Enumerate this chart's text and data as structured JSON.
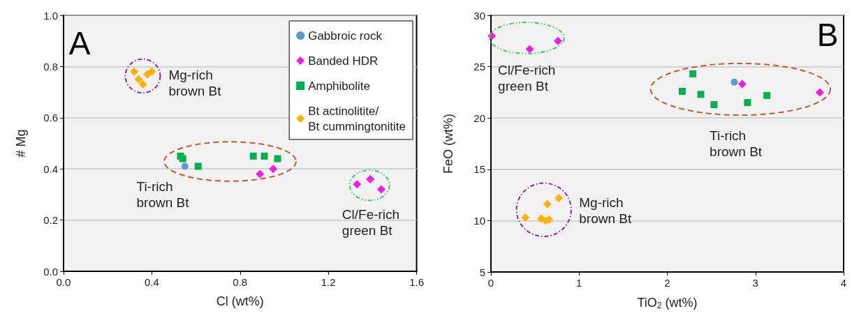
{
  "chart_data": [
    {
      "type": "scatter",
      "xlabel": "Cl (wt%)",
      "ylabel": "# Mg",
      "xlim": [
        0,
        1.6
      ],
      "ylim": [
        0,
        1
      ],
      "xticks": [
        {
          "value": 0,
          "label": "0.0"
        },
        {
          "value": 0.4,
          "label": "0.4"
        },
        {
          "value": 0.8,
          "label": "0.8"
        },
        {
          "value": 1.2,
          "label": "1.2"
        },
        {
          "value": 1.6,
          "label": "1.6"
        }
      ],
      "yticks": [
        {
          "value": 0,
          "label": "0.0"
        },
        {
          "value": 0.2,
          "label": "0.2"
        },
        {
          "value": 0.4,
          "label": "0.4"
        },
        {
          "value": 0.6,
          "label": "0.6"
        },
        {
          "value": 0.8,
          "label": "0.8"
        },
        {
          "value": 1,
          "label": "1.0"
        }
      ],
      "grid": "y",
      "legend": "top right",
      "series": [
        {
          "name": "Gabbroic rock",
          "color": "#5b9bd5",
          "marker": "circle",
          "x": [
            0.55
          ],
          "values": [
            0.41
          ]
        },
        {
          "name": "Banded HDR",
          "color": "#ee1ee6",
          "marker": "diamond",
          "x": [
            0.89,
            0.95,
            1.33,
            1.39,
            1.44
          ],
          "values": [
            0.38,
            0.4,
            0.34,
            0.36,
            0.32
          ]
        },
        {
          "name": "Amphibolite",
          "color": "#00b050",
          "marker": "square",
          "x": [
            0.53,
            0.54,
            0.61,
            0.86,
            0.91,
            0.97
          ],
          "values": [
            0.45,
            0.44,
            0.41,
            0.45,
            0.45,
            0.44
          ]
        },
        {
          "name": "Bt actinolitite/\nBt cummingtonitite",
          "color": "#ffb000",
          "marker": "diamond",
          "x": [
            0.32,
            0.34,
            0.36,
            0.38,
            0.4
          ],
          "values": [
            0.78,
            0.75,
            0.73,
            0.77,
            0.78
          ]
        }
      ],
      "annotations": [
        "A",
        "Mg-rich\nbrown Bt",
        "Ti-rich\nbrown Bt",
        "Cl/Fe-rich\ngreen Bt"
      ]
    },
    {
      "type": "scatter",
      "xlabel": "TiO$_{2}$ (wt%)",
      "ylabel": "FeO (wt%)",
      "xlim": [
        0,
        4
      ],
      "ylim": [
        5,
        30
      ],
      "xticks": [
        0,
        1,
        2,
        3,
        4
      ],
      "yticks": [
        5,
        10,
        15,
        20,
        25,
        30
      ],
      "grid": "y",
      "series": [
        {
          "color": "#5b9bd5",
          "marker": "circle",
          "x": [
            2.76
          ],
          "values": [
            23.5
          ]
        },
        {
          "color": "#ee1ee6",
          "marker": "diamond",
          "x": [
            0.01,
            0.44,
            0.76,
            2.85,
            3.73
          ],
          "values": [
            28,
            26.7,
            27.5,
            23.3,
            22.5
          ]
        },
        {
          "color": "#00b050",
          "marker": "square",
          "x": [
            2.17,
            2.29,
            2.38,
            2.53,
            2.91,
            3.13
          ],
          "values": [
            22.6,
            24.3,
            22.3,
            21.3,
            21.5,
            22.2
          ]
        },
        {
          "color": "#ffb000",
          "marker": "diamond",
          "x": [
            0.39,
            0.57,
            0.62,
            0.66,
            0.64,
            0.77
          ],
          "values": [
            10.3,
            10.2,
            10,
            10.1,
            11.6,
            12.2
          ]
        }
      ],
      "annotations": [
        "B",
        "Cl/Fe-rich\ngreen Bt",
        "Ti-rich\nbrown Bt",
        "Mg-rich\nbrown Bt"
      ]
    }
  ]
}
